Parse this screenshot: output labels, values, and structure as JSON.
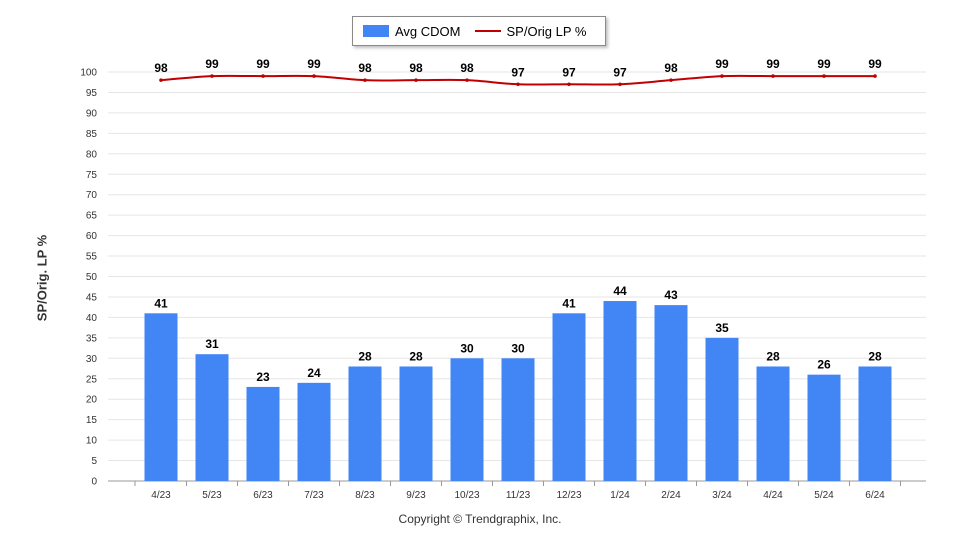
{
  "chart_data": {
    "type": "bar",
    "categories": [
      "4/23",
      "5/23",
      "6/23",
      "7/23",
      "8/23",
      "9/23",
      "10/23",
      "11/23",
      "12/23",
      "1/24",
      "2/24",
      "3/24",
      "4/24",
      "5/24",
      "6/24"
    ],
    "series": [
      {
        "name": "Avg CDOM",
        "type": "bar",
        "color": "#4285f4",
        "values": [
          41,
          31,
          23,
          24,
          28,
          28,
          30,
          30,
          41,
          44,
          43,
          35,
          28,
          26,
          28
        ]
      },
      {
        "name": "SP/Orig LP %",
        "type": "line",
        "color": "#c00000",
        "values": [
          98,
          99,
          99,
          99,
          98,
          98,
          98,
          97,
          97,
          97,
          98,
          99,
          99,
          99,
          99
        ]
      }
    ],
    "ylabel": "SP/Orig. LP %",
    "ylim": [
      0,
      100
    ],
    "yticks": [
      0,
      5,
      10,
      15,
      20,
      25,
      30,
      35,
      40,
      45,
      50,
      55,
      60,
      65,
      70,
      75,
      80,
      85,
      90,
      95,
      100
    ],
    "grid": true,
    "legend_position": "top-center"
  },
  "footer": {
    "copyright": "Copyright © Trendgraphix, Inc."
  }
}
